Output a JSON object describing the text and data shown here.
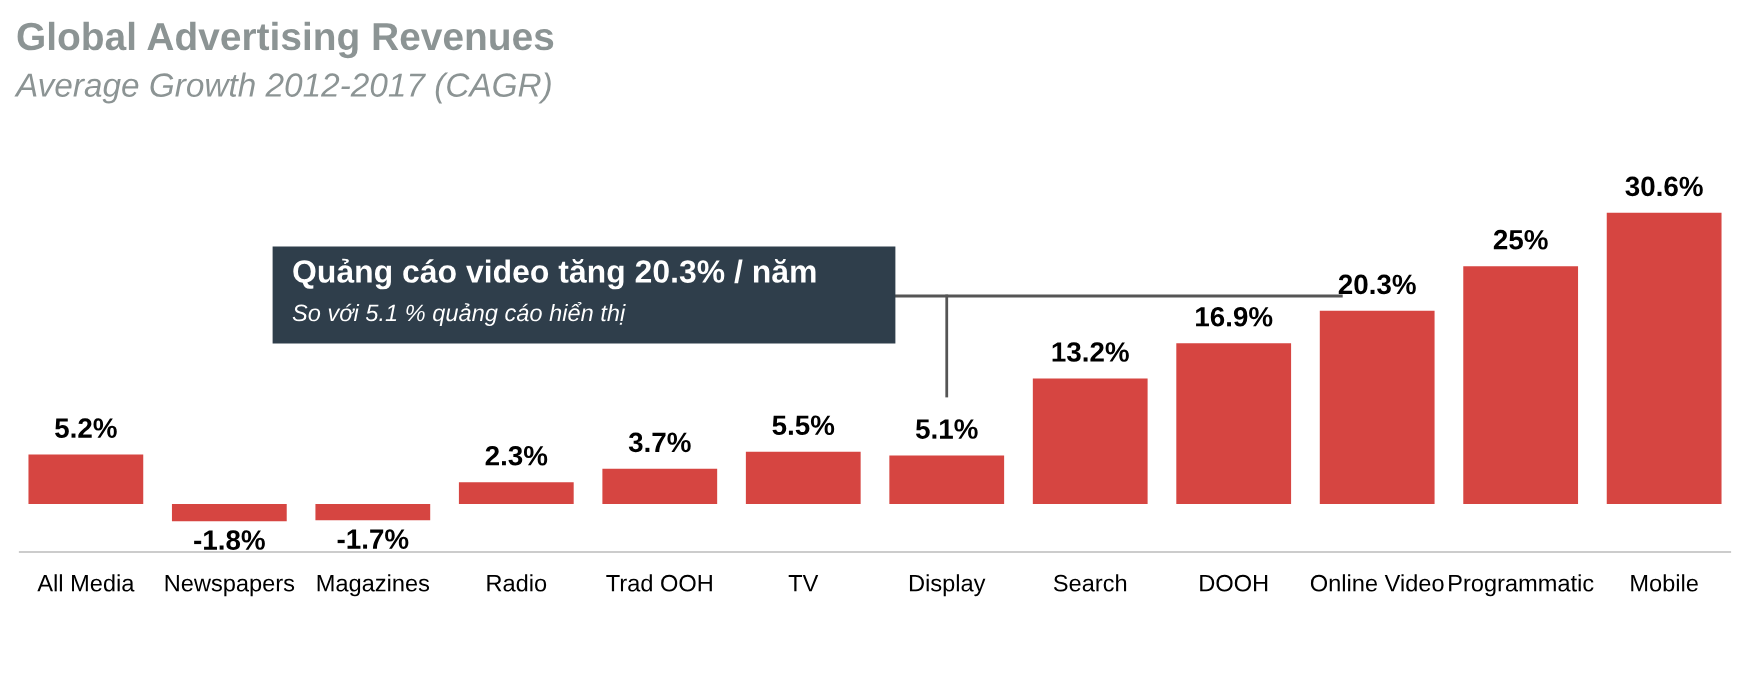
{
  "chart_data": {
    "type": "bar",
    "title": "Global Advertising Revenues",
    "subtitle": "Average Growth 2012-2017 (CAGR)",
    "categories": [
      "All Media",
      "Newspapers",
      "Magazines",
      "Radio",
      "Trad OOH",
      "TV",
      "Display",
      "Search",
      "DOOH",
      "Online Video",
      "Programmatic",
      "Mobile"
    ],
    "values": [
      5.2,
      -1.8,
      -1.7,
      2.3,
      3.7,
      5.5,
      5.1,
      13.2,
      16.9,
      20.3,
      25,
      30.6
    ],
    "value_labels": [
      "5.2%",
      "-1.8%",
      "-1.7%",
      "2.3%",
      "3.7%",
      "5.5%",
      "5.1%",
      "13.2%",
      "16.9%",
      "20.3%",
      "25%",
      "30.6%"
    ],
    "color": "#d64541",
    "annotations": [
      "Quảng cáo video tăng 20.3% / năm",
      "So với 5.1 % quảng cáo hiển thị"
    ]
  }
}
